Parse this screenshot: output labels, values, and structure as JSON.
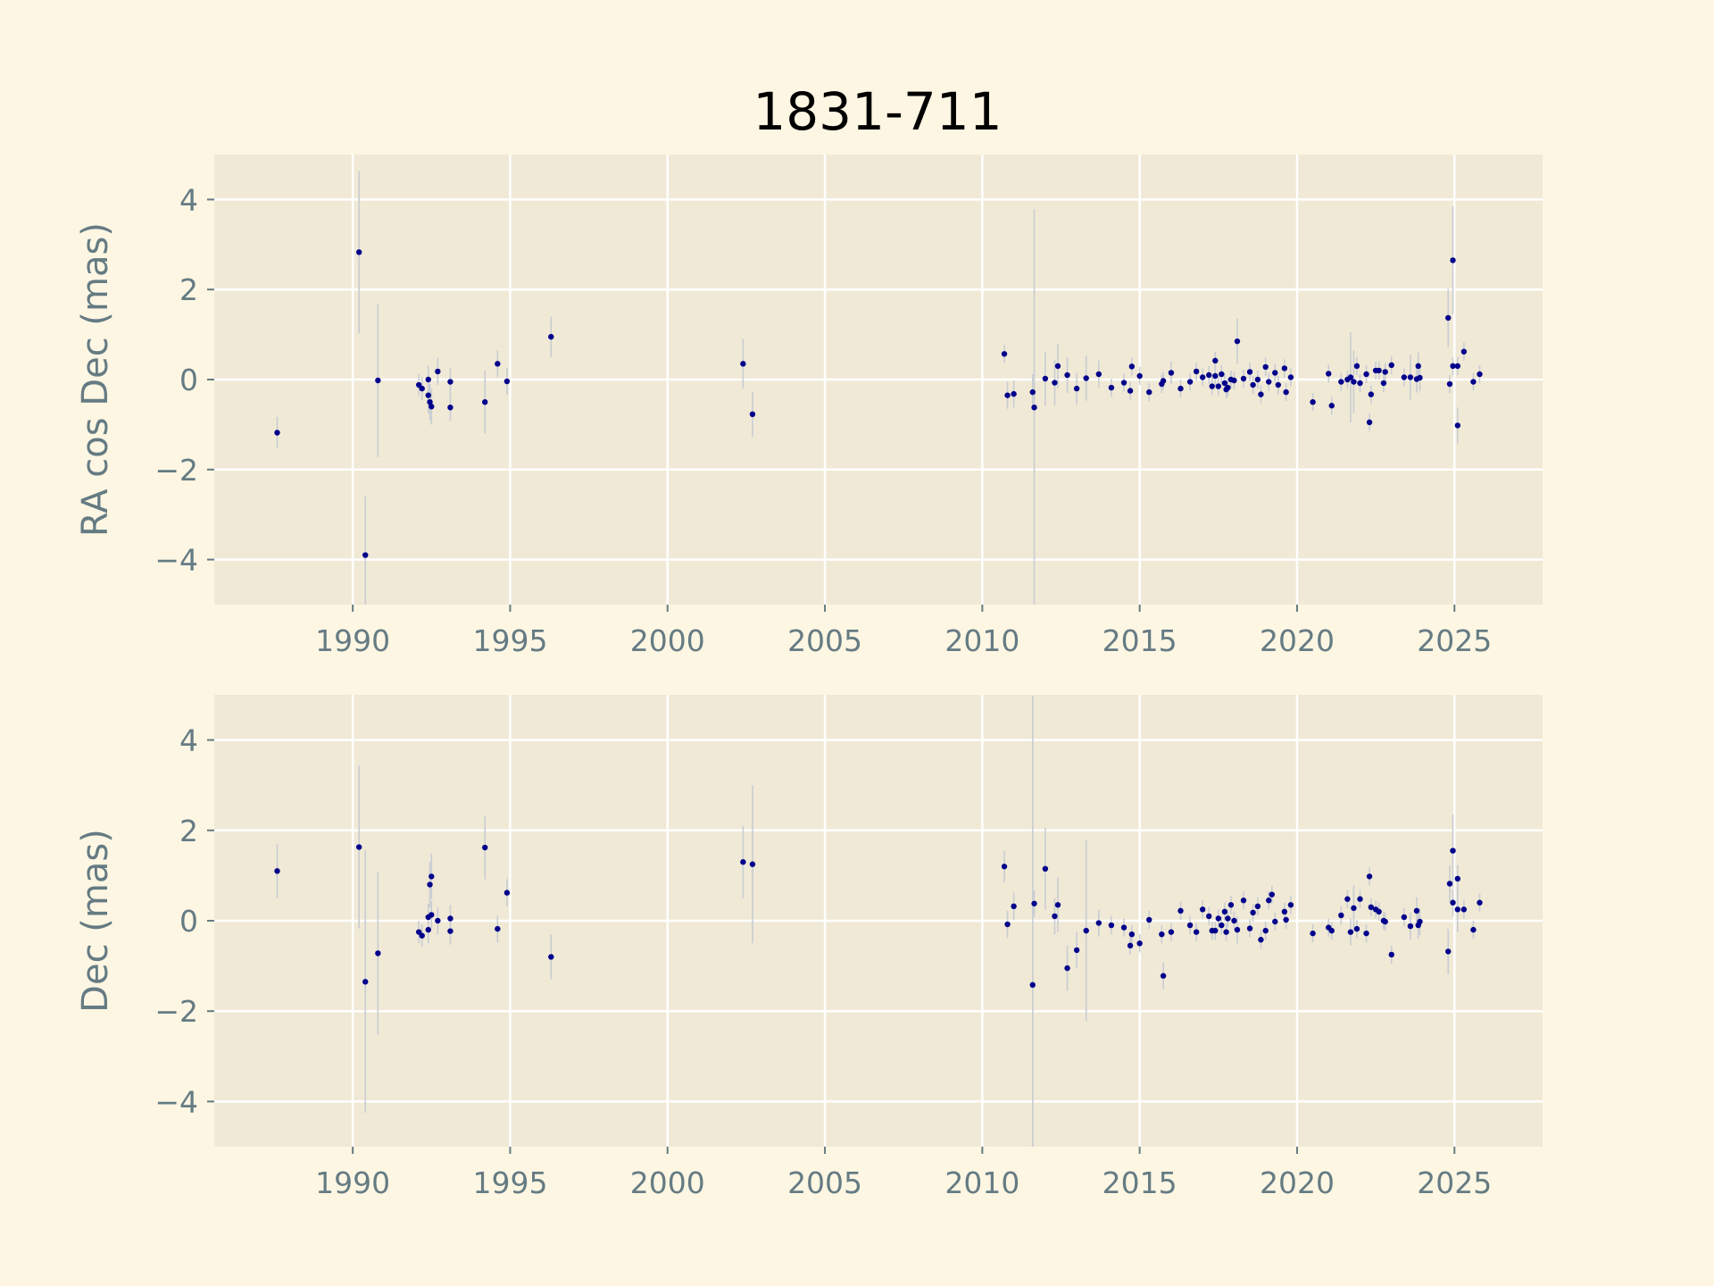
{
  "title": "1831-711",
  "colors": {
    "figure_background": "#fdf6e3",
    "axes_background": "#f0e9d6",
    "grid": "#ffffff",
    "marker": "#00008b",
    "error_bar": "#c8cdd2",
    "label_text": "#657b83"
  },
  "chart_data": [
    {
      "type": "scatter",
      "ylabel": "RA cos Dec (mas)",
      "xlabel": "",
      "xlim": [
        1985.6,
        2027.8
      ],
      "ylim": [
        -5,
        5
      ],
      "xticks": [
        1990,
        1995,
        2000,
        2005,
        2010,
        2015,
        2020,
        2025
      ],
      "yticks": [
        4,
        2,
        0,
        -2,
        -4
      ],
      "ytick_labels": [
        "4",
        "2",
        "0",
        "−2",
        "−4"
      ],
      "xtick_labels": [
        "1990",
        "1995",
        "2000",
        "2005",
        "2010",
        "2015",
        "2020",
        "2025"
      ],
      "grid": true,
      "points": [
        [
          1987.6,
          -1.18,
          0.35
        ],
        [
          1990.2,
          2.83,
          1.8
        ],
        [
          1990.4,
          -3.9,
          1.3
        ],
        [
          1990.8,
          -0.02,
          1.7
        ],
        [
          1992.1,
          -0.12,
          0.25
        ],
        [
          1992.2,
          -0.2,
          0.25
        ],
        [
          1992.4,
          -0.35,
          0.4
        ],
        [
          1992.4,
          0.0,
          0.3
        ],
        [
          1992.45,
          -0.5,
          0.4
        ],
        [
          1992.5,
          -0.6,
          0.4
        ],
        [
          1992.7,
          0.18,
          0.3
        ],
        [
          1993.1,
          -0.05,
          0.3
        ],
        [
          1993.1,
          -0.62,
          0.3
        ],
        [
          1994.2,
          -0.5,
          0.7
        ],
        [
          1994.6,
          0.35,
          0.3
        ],
        [
          1994.9,
          -0.04,
          0.3
        ],
        [
          1996.3,
          0.95,
          0.45
        ],
        [
          2002.4,
          0.35,
          0.55
        ],
        [
          2002.7,
          -0.77,
          0.5
        ],
        [
          2010.7,
          0.57,
          0.2
        ],
        [
          2010.8,
          -0.35,
          0.3
        ],
        [
          2011.0,
          -0.32,
          0.3
        ],
        [
          2011.6,
          -0.28,
          0.4
        ],
        [
          2011.65,
          -0.62,
          4.4
        ],
        [
          2012.0,
          0.02,
          0.6
        ],
        [
          2012.3,
          -0.07,
          0.5
        ],
        [
          2012.4,
          0.3,
          0.5
        ],
        [
          2012.7,
          0.1,
          0.4
        ],
        [
          2013.0,
          -0.2,
          0.35
        ],
        [
          2013.3,
          0.03,
          0.5
        ],
        [
          2013.7,
          0.12,
          0.3
        ],
        [
          2014.1,
          -0.18,
          0.2
        ],
        [
          2014.5,
          -0.07,
          0.2
        ],
        [
          2014.7,
          -0.25,
          0.2
        ],
        [
          2014.75,
          0.29,
          0.2
        ],
        [
          2015.0,
          0.08,
          0.2
        ],
        [
          2015.3,
          -0.28,
          0.2
        ],
        [
          2015.7,
          -0.1,
          0.2
        ],
        [
          2015.75,
          -0.03,
          0.2
        ],
        [
          2016.0,
          0.15,
          0.25
        ],
        [
          2016.3,
          -0.2,
          0.2
        ],
        [
          2016.6,
          -0.05,
          0.2
        ],
        [
          2016.8,
          0.18,
          0.2
        ],
        [
          2017.0,
          0.05,
          0.2
        ],
        [
          2017.2,
          0.1,
          0.2
        ],
        [
          2017.3,
          -0.15,
          0.2
        ],
        [
          2017.4,
          0.42,
          0.2
        ],
        [
          2017.4,
          0.08,
          0.2
        ],
        [
          2017.5,
          -0.15,
          0.2
        ],
        [
          2017.6,
          0.12,
          0.2
        ],
        [
          2017.7,
          -0.08,
          0.2
        ],
        [
          2017.75,
          -0.22,
          0.2
        ],
        [
          2017.8,
          -0.18,
          0.2
        ],
        [
          2017.9,
          0.0,
          0.2
        ],
        [
          2018.0,
          -0.02,
          0.2
        ],
        [
          2018.1,
          0.85,
          0.5
        ],
        [
          2018.3,
          0.02,
          0.2
        ],
        [
          2018.5,
          0.17,
          0.2
        ],
        [
          2018.6,
          -0.12,
          0.2
        ],
        [
          2018.75,
          0.0,
          0.2
        ],
        [
          2018.85,
          -0.33,
          0.2
        ],
        [
          2019.0,
          0.28,
          0.2
        ],
        [
          2019.1,
          -0.05,
          0.2
        ],
        [
          2019.3,
          0.15,
          0.2
        ],
        [
          2019.4,
          -0.12,
          0.2
        ],
        [
          2019.6,
          0.25,
          0.2
        ],
        [
          2019.65,
          -0.28,
          0.2
        ],
        [
          2019.8,
          0.05,
          0.2
        ],
        [
          2020.5,
          -0.5,
          0.2
        ],
        [
          2021.0,
          0.13,
          0.2
        ],
        [
          2021.1,
          -0.58,
          0.2
        ],
        [
          2021.4,
          -0.05,
          0.2
        ],
        [
          2021.6,
          0.0,
          0.2
        ],
        [
          2021.7,
          0.05,
          1.0
        ],
        [
          2021.8,
          -0.05,
          0.7
        ],
        [
          2021.9,
          0.3,
          0.2
        ],
        [
          2022.0,
          -0.08,
          0.2
        ],
        [
          2022.2,
          0.12,
          0.2
        ],
        [
          2022.3,
          -0.95,
          0.2
        ],
        [
          2022.35,
          -0.33,
          0.2
        ],
        [
          2022.5,
          0.2,
          0.2
        ],
        [
          2022.6,
          0.2,
          0.2
        ],
        [
          2022.75,
          -0.08,
          0.2
        ],
        [
          2022.8,
          0.17,
          0.2
        ],
        [
          2023.0,
          0.32,
          0.2
        ],
        [
          2023.4,
          0.05,
          0.2
        ],
        [
          2023.6,
          0.05,
          0.5
        ],
        [
          2023.8,
          0.01,
          0.3
        ],
        [
          2023.85,
          0.3,
          0.3
        ],
        [
          2023.9,
          0.04,
          0.3
        ],
        [
          2024.8,
          1.37,
          0.65
        ],
        [
          2024.85,
          -0.1,
          0.2
        ],
        [
          2024.95,
          0.3,
          0.2
        ],
        [
          2024.95,
          2.65,
          1.2
        ],
        [
          2025.1,
          -1.02,
          0.4
        ],
        [
          2025.1,
          0.3,
          0.2
        ],
        [
          2025.3,
          0.62,
          0.2
        ],
        [
          2025.6,
          -0.05,
          0.2
        ],
        [
          2025.8,
          0.12,
          0.2
        ]
      ]
    },
    {
      "type": "scatter",
      "ylabel": "Dec (mas)",
      "xlabel": "",
      "xlim": [
        1985.6,
        2027.8
      ],
      "ylim": [
        -5,
        5
      ],
      "xticks": [
        1990,
        1995,
        2000,
        2005,
        2010,
        2015,
        2020,
        2025
      ],
      "yticks": [
        4,
        2,
        0,
        -2,
        -4
      ],
      "ytick_labels": [
        "4",
        "2",
        "0",
        "−2",
        "−4"
      ],
      "xtick_labels": [
        "1990",
        "1995",
        "2000",
        "2005",
        "2010",
        "2015",
        "2020",
        "2025"
      ],
      "grid": true,
      "points": [
        [
          1987.6,
          1.1,
          0.6
        ],
        [
          1990.2,
          1.63,
          1.8
        ],
        [
          1990.4,
          -1.35,
          2.9
        ],
        [
          1990.8,
          -0.72,
          1.8
        ],
        [
          1992.1,
          -0.25,
          0.25
        ],
        [
          1992.2,
          -0.33,
          0.25
        ],
        [
          1992.4,
          0.08,
          0.3
        ],
        [
          1992.4,
          -0.2,
          0.3
        ],
        [
          1992.45,
          0.8,
          0.5
        ],
        [
          1992.5,
          0.98,
          0.5
        ],
        [
          1992.5,
          0.13,
          0.3
        ],
        [
          1992.7,
          0.0,
          0.3
        ],
        [
          1993.1,
          0.05,
          0.3
        ],
        [
          1993.1,
          -0.23,
          0.3
        ],
        [
          1994.2,
          1.62,
          0.7
        ],
        [
          1994.6,
          -0.18,
          0.3
        ],
        [
          1994.9,
          0.62,
          0.3
        ],
        [
          1996.3,
          -0.8,
          0.5
        ],
        [
          2002.4,
          1.3,
          0.8
        ],
        [
          2002.7,
          1.25,
          1.75
        ],
        [
          2010.7,
          1.2,
          0.35
        ],
        [
          2010.8,
          -0.08,
          0.3
        ],
        [
          2011.0,
          0.32,
          0.3
        ],
        [
          2011.6,
          -1.42,
          6.4
        ],
        [
          2011.65,
          0.38,
          0.3
        ],
        [
          2012.0,
          1.15,
          0.9
        ],
        [
          2012.3,
          0.1,
          0.4
        ],
        [
          2012.4,
          0.35,
          0.6
        ],
        [
          2012.7,
          -1.05,
          0.5
        ],
        [
          2013.0,
          -0.65,
          0.4
        ],
        [
          2013.3,
          -0.22,
          2.0
        ],
        [
          2013.7,
          -0.05,
          0.3
        ],
        [
          2014.1,
          -0.1,
          0.2
        ],
        [
          2014.5,
          -0.15,
          0.2
        ],
        [
          2014.7,
          -0.55,
          0.2
        ],
        [
          2014.75,
          -0.3,
          0.2
        ],
        [
          2015.0,
          -0.5,
          0.2
        ],
        [
          2015.3,
          0.02,
          0.2
        ],
        [
          2015.7,
          -0.3,
          0.2
        ],
        [
          2015.75,
          -1.22,
          0.3
        ],
        [
          2016.0,
          -0.25,
          0.2
        ],
        [
          2016.3,
          0.22,
          0.2
        ],
        [
          2016.6,
          -0.1,
          0.2
        ],
        [
          2016.8,
          -0.25,
          0.2
        ],
        [
          2017.0,
          0.25,
          0.2
        ],
        [
          2017.2,
          0.1,
          0.2
        ],
        [
          2017.3,
          -0.22,
          0.2
        ],
        [
          2017.4,
          -0.22,
          0.2
        ],
        [
          2017.5,
          0.05,
          0.2
        ],
        [
          2017.6,
          -0.1,
          0.2
        ],
        [
          2017.7,
          0.2,
          0.2
        ],
        [
          2017.75,
          -0.25,
          0.2
        ],
        [
          2017.8,
          0.05,
          0.2
        ],
        [
          2017.9,
          0.35,
          0.2
        ],
        [
          2018.0,
          0.0,
          0.2
        ],
        [
          2018.1,
          -0.2,
          0.3
        ],
        [
          2018.3,
          0.45,
          0.2
        ],
        [
          2018.5,
          -0.17,
          0.2
        ],
        [
          2018.6,
          0.18,
          0.2
        ],
        [
          2018.75,
          0.32,
          0.2
        ],
        [
          2018.85,
          -0.42,
          0.2
        ],
        [
          2019.0,
          -0.22,
          0.2
        ],
        [
          2019.1,
          0.45,
          0.2
        ],
        [
          2019.2,
          0.58,
          0.2
        ],
        [
          2019.3,
          -0.02,
          0.2
        ],
        [
          2019.6,
          0.2,
          0.2
        ],
        [
          2019.65,
          0.02,
          0.2
        ],
        [
          2019.8,
          0.35,
          0.2
        ],
        [
          2020.5,
          -0.28,
          0.2
        ],
        [
          2021.0,
          -0.15,
          0.2
        ],
        [
          2021.1,
          -0.22,
          0.2
        ],
        [
          2021.4,
          0.12,
          0.2
        ],
        [
          2021.6,
          0.48,
          0.2
        ],
        [
          2021.7,
          -0.25,
          0.3
        ],
        [
          2021.8,
          0.28,
          0.5
        ],
        [
          2021.9,
          -0.18,
          0.2
        ],
        [
          2022.0,
          0.48,
          0.2
        ],
        [
          2022.2,
          -0.28,
          0.2
        ],
        [
          2022.3,
          0.98,
          0.2
        ],
        [
          2022.35,
          0.3,
          0.2
        ],
        [
          2022.5,
          0.25,
          0.2
        ],
        [
          2022.6,
          0.2,
          0.2
        ],
        [
          2022.75,
          0.0,
          0.2
        ],
        [
          2022.8,
          -0.02,
          0.2
        ],
        [
          2023.0,
          -0.75,
          0.2
        ],
        [
          2023.4,
          0.08,
          0.2
        ],
        [
          2023.6,
          -0.12,
          0.3
        ],
        [
          2023.8,
          0.22,
          0.3
        ],
        [
          2023.85,
          -0.1,
          0.3
        ],
        [
          2023.9,
          -0.02,
          0.3
        ],
        [
          2024.8,
          -0.68,
          0.5
        ],
        [
          2024.85,
          0.82,
          0.4
        ],
        [
          2024.95,
          1.55,
          0.8
        ],
        [
          2024.95,
          0.4,
          0.3
        ],
        [
          2025.1,
          0.93,
          0.3
        ],
        [
          2025.1,
          0.25,
          0.5
        ],
        [
          2025.3,
          0.25,
          0.2
        ],
        [
          2025.6,
          -0.2,
          0.2
        ],
        [
          2025.8,
          0.4,
          0.2
        ]
      ]
    }
  ]
}
